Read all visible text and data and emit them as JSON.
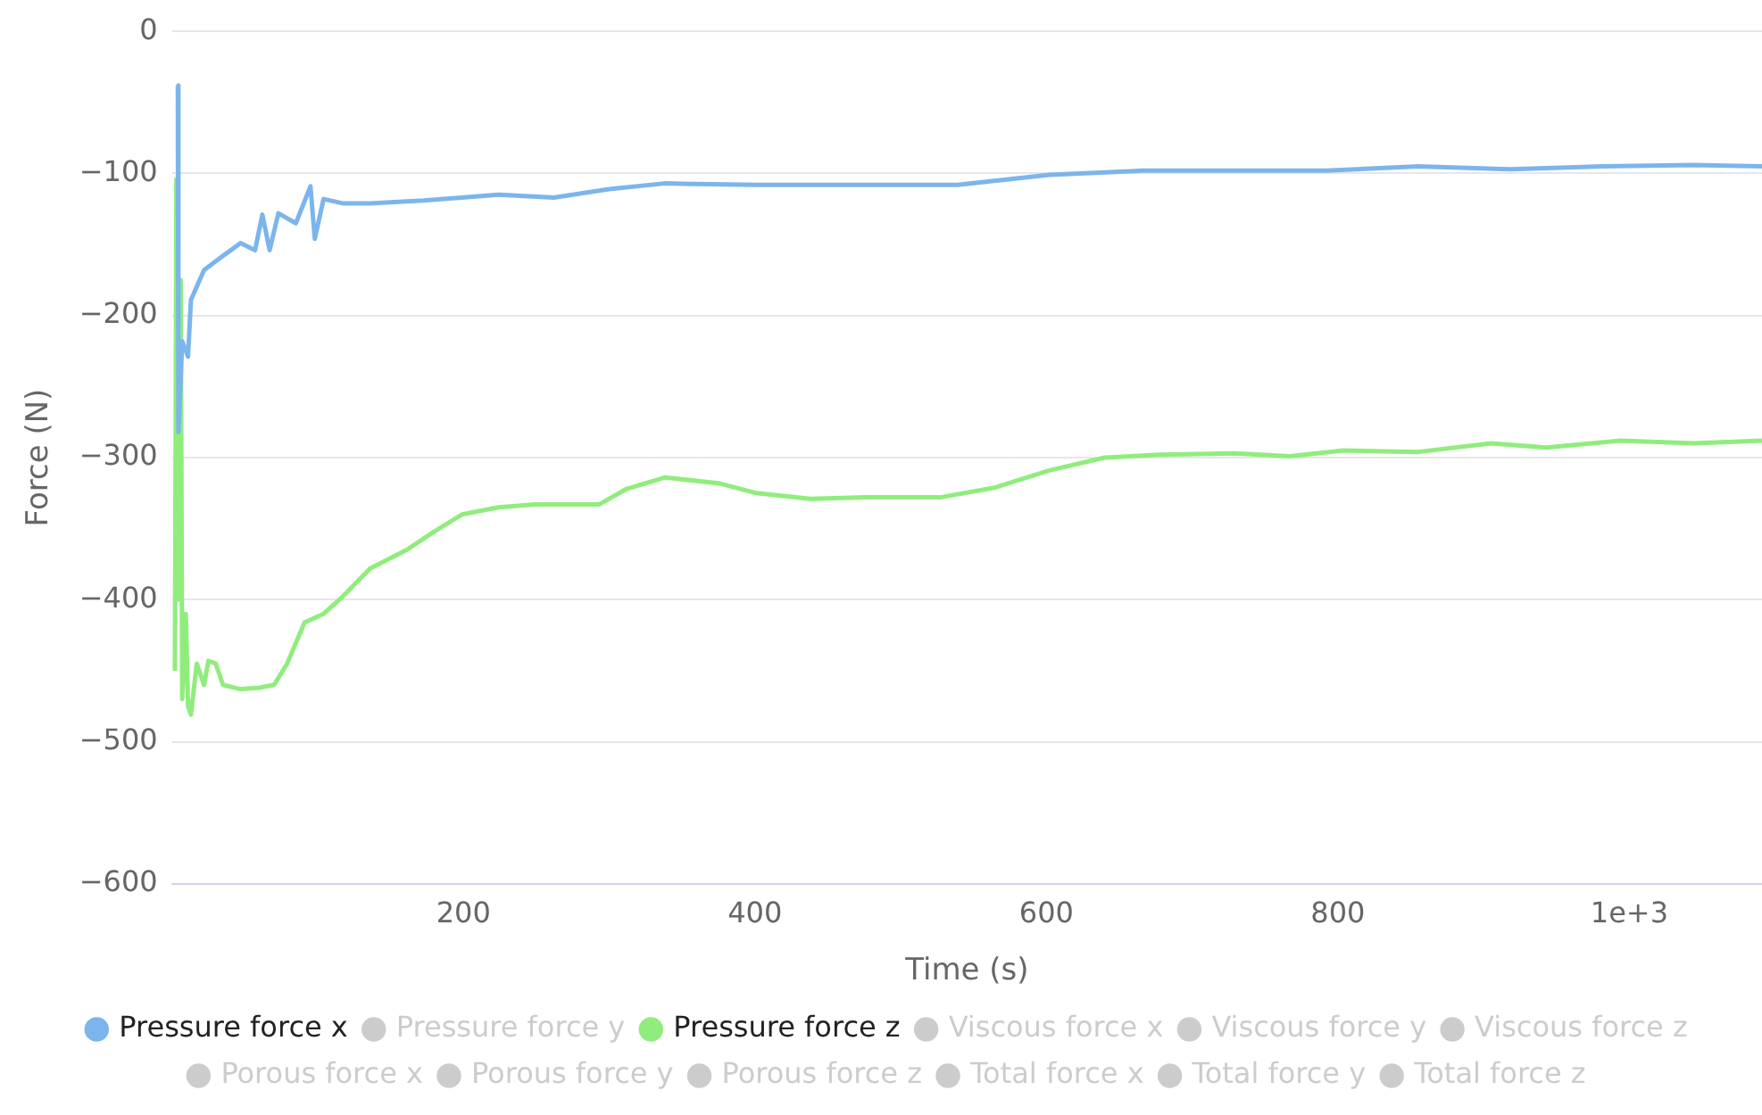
{
  "chart_data": {
    "type": "line",
    "xlabel": "Time (s)",
    "ylabel": "Force (N)",
    "xlim": [
      0,
      1091
    ],
    "xticks": [
      200,
      400,
      600,
      800,
      {
        "value": 1000,
        "label": "1e+3"
      }
    ],
    "ylim": [
      -600,
      0
    ],
    "yticks": [
      {
        "value": -600,
        "label": "−600"
      },
      {
        "value": -500,
        "label": "−500"
      },
      {
        "value": -400,
        "label": "−400"
      },
      {
        "value": -300,
        "label": "−300"
      },
      {
        "value": -200,
        "label": "−200"
      },
      {
        "value": -100,
        "label": "−100"
      },
      0
    ],
    "grid": "y",
    "legend": "bottom",
    "series": [
      {
        "name": "Pressure force x",
        "color": "#7cb5ec",
        "x": [
          4,
          4.4,
          7,
          11,
          13,
          22,
          35,
          47,
          57,
          62,
          67,
          73,
          85,
          95,
          98,
          104,
          117,
          136,
          173,
          224,
          262,
          300,
          338,
          401,
          476,
          539,
          602,
          666,
          729,
          792,
          855,
          918,
          981,
          1044,
          1091
        ],
        "values": [
          -38,
          -282,
          -218,
          -229,
          -189,
          -168,
          -158,
          -149,
          -154,
          -129,
          -154,
          -128,
          -135,
          -109,
          -146,
          -118,
          -121,
          -121,
          -119,
          -115,
          -117,
          -111,
          -107,
          -108,
          -108,
          -108,
          -101,
          -98,
          -98,
          -98,
          -95,
          -97,
          -95,
          -94,
          -95
        ]
      },
      {
        "name": "Pressure force y",
        "color": "#cccccc"
      },
      {
        "name": "Pressure force z",
        "color": "#90ed7d",
        "x": [
          2,
          3,
          4.4,
          6,
          7,
          9.5,
          11,
          13,
          17,
          22,
          25,
          30,
          35,
          47,
          60,
          70,
          79,
          91,
          104,
          117,
          136,
          161,
          180,
          199,
          224,
          249,
          274,
          293,
          312,
          338,
          375,
          401,
          438,
          476,
          527,
          565,
          602,
          640,
          678,
          729,
          767,
          804,
          855,
          905,
          943,
          994,
          1044,
          1091
        ],
        "values": [
          -450,
          -104,
          -400,
          -175,
          -470,
          -410,
          -475,
          -481,
          -445,
          -460,
          -443,
          -445,
          -460,
          -463,
          -462,
          -460,
          -445,
          -416,
          -410,
          -398,
          -378,
          -365,
          -352,
          -340,
          -335,
          -333,
          -333,
          -333,
          -322,
          -314,
          -318,
          -325,
          -329,
          -328,
          -328,
          -321,
          -309,
          -300,
          -298,
          -297,
          -299,
          -295,
          -296,
          -290,
          -293,
          -288,
          -290,
          -288
        ]
      },
      {
        "name": "Viscous force x",
        "color": "#cccccc"
      },
      {
        "name": "Viscous force y",
        "color": "#cccccc"
      },
      {
        "name": "Viscous force z",
        "color": "#cccccc"
      },
      {
        "name": "Porous force x",
        "color": "#cccccc"
      },
      {
        "name": "Porous force y",
        "color": "#cccccc"
      },
      {
        "name": "Porous force z",
        "color": "#cccccc"
      },
      {
        "name": "Total force x",
        "color": "#cccccc"
      },
      {
        "name": "Total force y",
        "color": "#cccccc"
      },
      {
        "name": "Total force z",
        "color": "#cccccc"
      }
    ]
  }
}
